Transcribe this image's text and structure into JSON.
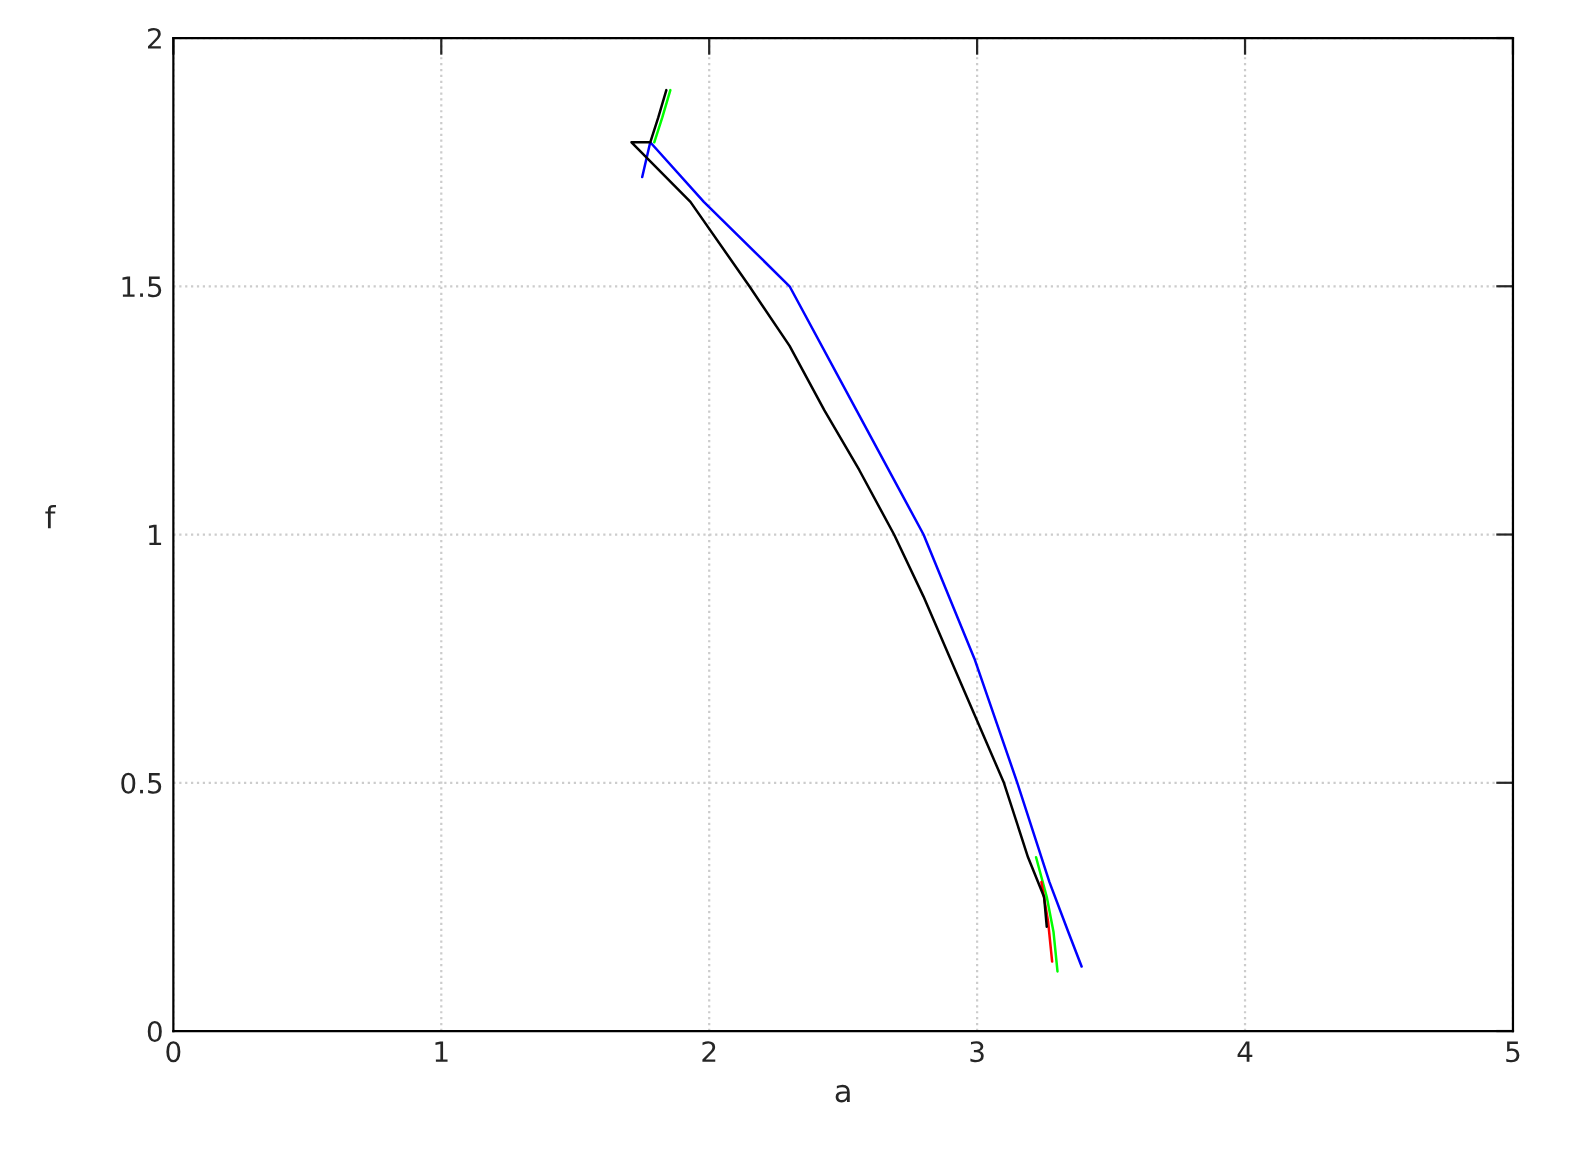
{
  "chart_data": {
    "type": "line",
    "xlabel": "a",
    "ylabel": "f",
    "xlim": [
      0,
      5
    ],
    "xticks": [
      0,
      1,
      2,
      3,
      4,
      5
    ],
    "ylim": [
      0,
      2
    ],
    "yticks": [
      0,
      0.5,
      1,
      1.5,
      2
    ],
    "grid": true,
    "legend": false,
    "marker": "none",
    "line_style": "solid",
    "series": [
      {
        "color": "#0000ff",
        "x": [
          1.75,
          1.78,
          1.98,
          2.3,
          2.55,
          2.8,
          2.99,
          3.15,
          3.27,
          3.34,
          3.39
        ],
        "values": [
          1.72,
          1.79,
          1.67,
          1.5,
          1.25,
          1.0,
          0.75,
          0.5,
          0.3,
          0.2,
          0.13
        ]
      },
      {
        "color": "#00ff00",
        "x": [
          1.855,
          1.825,
          1.795
        ],
        "values": [
          1.895,
          1.84,
          1.79
        ]
      },
      {
        "color": "#00ff00",
        "x": [
          3.22,
          3.26,
          3.285,
          3.3
        ],
        "values": [
          0.35,
          0.27,
          0.2,
          0.12
        ]
      },
      {
        "color": "#ff0000",
        "x": [
          3.24,
          3.265,
          3.28
        ],
        "values": [
          0.3,
          0.22,
          0.14
        ]
      },
      {
        "color": "#000000",
        "x": [
          1.84,
          1.81,
          1.78,
          1.71,
          1.93,
          2.15,
          2.3,
          2.43,
          2.56,
          2.69,
          2.8,
          2.9,
          3.0,
          3.1,
          3.19,
          3.25,
          3.26
        ],
        "values": [
          1.895,
          1.84,
          1.79,
          1.79,
          1.67,
          1.5,
          1.38,
          1.25,
          1.13,
          1.0,
          0.875,
          0.75,
          0.625,
          0.5,
          0.35,
          0.27,
          0.21
        ]
      }
    ]
  }
}
